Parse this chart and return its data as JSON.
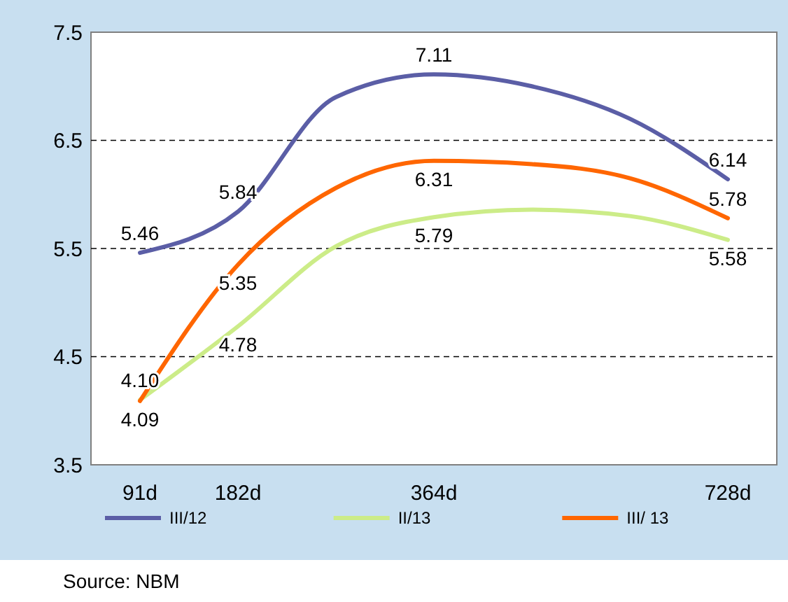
{
  "chart_data": {
    "type": "line",
    "categories": [
      "91d",
      "182d",
      null,
      "364d",
      null,
      null,
      "728d"
    ],
    "series": [
      {
        "name": "III/12",
        "color": "#5b5ea6",
        "values": [
          5.46,
          5.84,
          6.9,
          7.11,
          7.0,
          6.7,
          6.14
        ],
        "value_labels": [
          "5.46",
          "5.84",
          null,
          "7.11",
          null,
          null,
          "6.14"
        ]
      },
      {
        "name": "II/13",
        "color": "#ccec88",
        "values": [
          4.1,
          4.78,
          5.52,
          5.79,
          5.86,
          5.8,
          5.58
        ],
        "value_labels": [
          "4.10",
          "4.78",
          null,
          "5.79",
          null,
          null,
          "5.58"
        ]
      },
      {
        "name": "III/ 13",
        "color": "#ff6600",
        "values": [
          4.09,
          5.35,
          6.06,
          6.31,
          6.28,
          6.15,
          5.78
        ],
        "value_labels": [
          "4.09",
          "5.35",
          null,
          "6.31",
          null,
          null,
          "5.78"
        ]
      }
    ],
    "ylim": [
      3.5,
      7.5
    ],
    "yticks": [
      3.5,
      4.5,
      5.5,
      6.5,
      7.5
    ],
    "grid": "y",
    "legend": "bottom",
    "marker": "none",
    "line_style": "solid",
    "annotations": [
      "Source: NBM"
    ]
  }
}
